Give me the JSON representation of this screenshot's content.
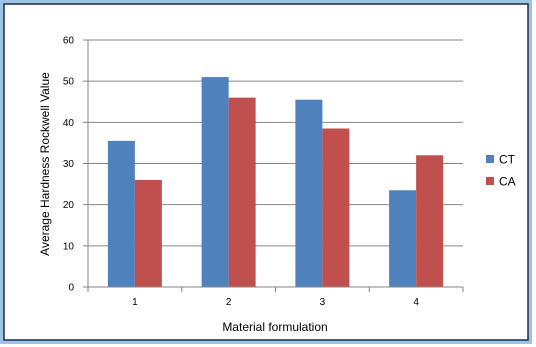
{
  "chart_data": {
    "type": "bar",
    "title": "",
    "xlabel": "Material formulation",
    "ylabel": "Average Hardness Rockwell Value",
    "categories": [
      "1",
      "2",
      "3",
      "4"
    ],
    "ylim": [
      0,
      60
    ],
    "yticks": [
      0,
      10,
      20,
      30,
      40,
      50,
      60
    ],
    "grid": true,
    "legend_position": "right",
    "series": [
      {
        "name": "CT",
        "values": [
          35.5,
          51,
          45.5,
          23.5
        ],
        "color": "#4f81bd"
      },
      {
        "name": "CA",
        "values": [
          26,
          46,
          38.5,
          32
        ],
        "color": "#c0504d"
      }
    ]
  },
  "colors": {
    "frame_border": "#1f2d3d",
    "frame_glow": "#9cc3e8",
    "gridline": "#868686",
    "axis": "#868686"
  }
}
